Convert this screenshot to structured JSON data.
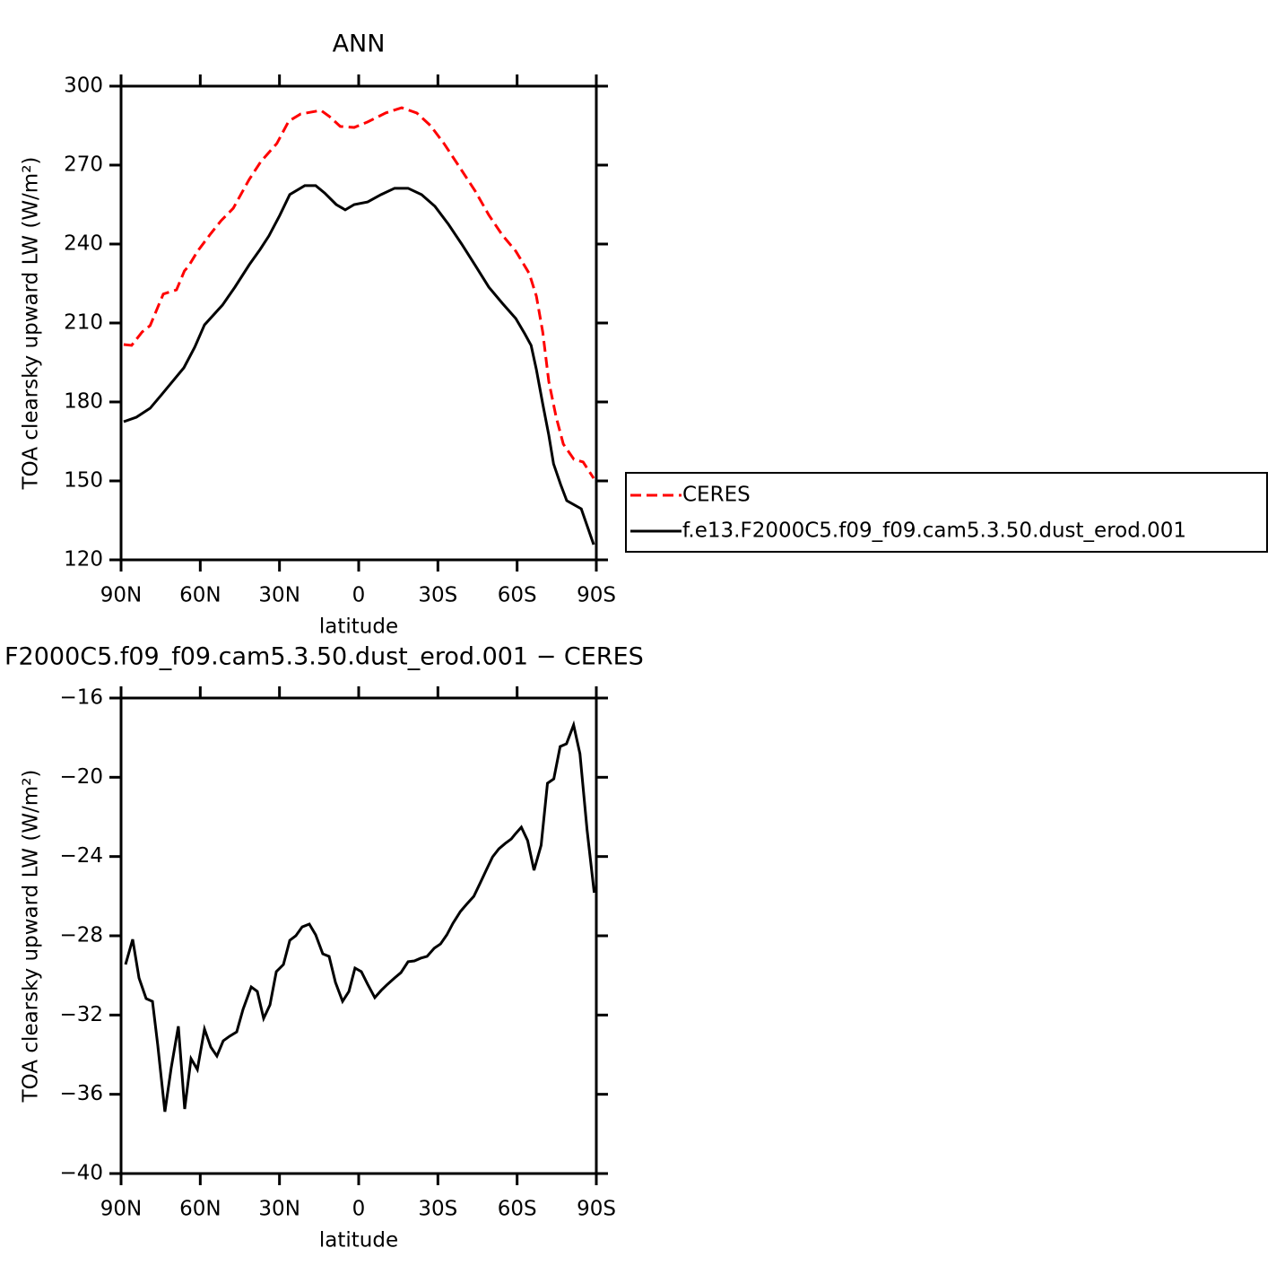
{
  "chart_data": [
    {
      "type": "line",
      "title": "ANN",
      "xlabel": "latitude",
      "ylabel": "TOA clearsky upward LW (W/m²)",
      "xlim": [
        90,
        -90
      ],
      "xticks": [
        {
          "value": 90,
          "label": "90N"
        },
        {
          "value": 60,
          "label": "60N"
        },
        {
          "value": 30,
          "label": "30N"
        },
        0,
        {
          "value": -30,
          "label": "30S"
        },
        {
          "value": -60,
          "label": "60S"
        },
        {
          "value": -90,
          "label": "90S"
        }
      ],
      "ylim": [
        120,
        300
      ],
      "yticks": [
        120,
        150,
        180,
        210,
        240,
        270,
        300
      ],
      "series": [
        {
          "name": "CERES",
          "color": "#ff0000",
          "dashed": true,
          "x": [
            89,
            86,
            82,
            79,
            74,
            69,
            66,
            64.5,
            61,
            56,
            52,
            47.5,
            41.5,
            37,
            31,
            26.5,
            22,
            14.3,
            11,
            7,
            1.7,
            -3.4,
            -10.2,
            -16.3,
            -22,
            -27.2,
            -32.3,
            -39,
            -44.2,
            -49.3,
            -54.4,
            -59.5,
            -64.6,
            -67.3,
            -69.7,
            -72,
            -74.8,
            -77.5,
            -81.5,
            -85,
            -89
          ],
          "values": [
            201.8,
            201.5,
            206.6,
            209,
            221,
            222.6,
            229.8,
            231.5,
            237.3,
            244,
            249,
            253.6,
            264.5,
            271.4,
            278.2,
            286.7,
            289.4,
            290.8,
            288.4,
            284.7,
            284.3,
            286.4,
            289.8,
            291.8,
            289.8,
            285,
            278.2,
            268,
            260,
            251,
            243.4,
            237.3,
            228.8,
            220.2,
            206.6,
            187.8,
            174.2,
            164,
            158.2,
            157.2,
            151
          ]
        },
        {
          "name": "f.e13.F2000C5.f09_f09.cam5.3.50.dust_erod.001",
          "color": "#000000",
          "dashed": false,
          "x": [
            89,
            84.2,
            79,
            74.7,
            69.6,
            66.2,
            62.1,
            58.4,
            51.6,
            46.9,
            41.4,
            37.3,
            34,
            29.9,
            26.1,
            20.4,
            16.3,
            12.9,
            8.5,
            5.1,
            1.7,
            -3.4,
            -8.5,
            -13.6,
            -18.7,
            -23.8,
            -28.9,
            -34,
            -39,
            -44.2,
            -49.3,
            -54.4,
            -59.5,
            -62.9,
            -65.3,
            -67.3,
            -69.7,
            -72,
            -73.8,
            -76.5,
            -78.8,
            -84.3,
            -89
          ],
          "values": [
            172.5,
            174.2,
            177.6,
            182.7,
            188.9,
            193,
            200.8,
            209.3,
            216.8,
            223.6,
            232.2,
            238,
            243.1,
            250.9,
            258.8,
            262.2,
            262.2,
            259.4,
            255,
            253,
            255,
            256,
            258.8,
            261.2,
            261.2,
            258.8,
            254.3,
            247.5,
            240,
            231.8,
            223.6,
            217.5,
            211.7,
            205.9,
            201.5,
            192.3,
            179.3,
            167.4,
            156.5,
            148.6,
            142.5,
            139.4,
            125.8
          ]
        }
      ]
    },
    {
      "type": "line",
      "title": "F2000C5.f09_f09.cam5.3.50.dust_erod.001 − CERES",
      "xlabel": "latitude",
      "ylabel": "TOA clearsky upward LW (W/m²)",
      "xlim": [
        90,
        -90
      ],
      "xticks": [
        {
          "value": 90,
          "label": "90N"
        },
        {
          "value": 60,
          "label": "60N"
        },
        {
          "value": 30,
          "label": "30N"
        },
        0,
        {
          "value": -30,
          "label": "30S"
        },
        {
          "value": -60,
          "label": "60S"
        },
        {
          "value": -90,
          "label": "90S"
        }
      ],
      "ylim": [
        -40,
        -16
      ],
      "yticks": [
        {
          "value": -40,
          "label": "−40"
        },
        {
          "value": -36,
          "label": "−36"
        },
        {
          "value": -32,
          "label": "−32"
        },
        {
          "value": -28,
          "label": "−28"
        },
        {
          "value": -24,
          "label": "−24"
        },
        {
          "value": -20,
          "label": "−20"
        },
        {
          "value": -16,
          "label": "−16"
        }
      ],
      "series": [
        {
          "color": "#000000",
          "dashed": false,
          "x": [
            88.3,
            85.6,
            83.2,
            80.5,
            78.1,
            76.1,
            73.4,
            71,
            68.3,
            65.9,
            63.5,
            61.1,
            58.4,
            56,
            53.7,
            51.3,
            48.9,
            46.2,
            43.8,
            40.7,
            38.4,
            36,
            33.6,
            31.2,
            28.5,
            26.1,
            23.8,
            21.4,
            18.7,
            16.3,
            13.6,
            11.2,
            8.8,
            6.1,
            3.7,
            1.4,
            -1,
            -3.4,
            -6.1,
            -8.5,
            -10.9,
            -13.6,
            -16,
            -18.7,
            -21.1,
            -23.5,
            -25.9,
            -28.6,
            -31,
            -33.4,
            -35.7,
            -38.5,
            -40.8,
            -43.6,
            -45.9,
            -48.3,
            -50.7,
            -53.1,
            -55.5,
            -57.8,
            -59.2,
            -61.6,
            -64,
            -66.4,
            -69.1,
            -71.5,
            -73.9,
            -76.3,
            -78.7,
            -81.4,
            -83.8,
            -86.5,
            -89.2
          ],
          "values": [
            -29.45,
            -28.18,
            -30.13,
            -31.17,
            -31.31,
            -33.52,
            -36.88,
            -34.66,
            -32.57,
            -36.74,
            -34.2,
            -34.75,
            -32.71,
            -33.62,
            -34.07,
            -33.3,
            -33.07,
            -32.85,
            -31.71,
            -30.58,
            -30.81,
            -32.17,
            -31.49,
            -29.81,
            -29.45,
            -28.23,
            -28,
            -27.55,
            -27.41,
            -27.95,
            -28.91,
            -29.04,
            -30.35,
            -31.31,
            -30.81,
            -29.63,
            -29.81,
            -30.45,
            -31.12,
            -30.76,
            -30.45,
            -30.13,
            -29.86,
            -29.31,
            -29.27,
            -29.13,
            -29.04,
            -28.63,
            -28.41,
            -27.95,
            -27.37,
            -26.78,
            -26.42,
            -26.01,
            -25.37,
            -24.69,
            -24.02,
            -23.61,
            -23.34,
            -23.11,
            -22.88,
            -22.52,
            -23.2,
            -24.69,
            -23.43,
            -20.3,
            -20.08,
            -18.45,
            -18.31,
            -17.36,
            -18.81,
            -22.66,
            -25.83
          ]
        }
      ]
    }
  ]
}
